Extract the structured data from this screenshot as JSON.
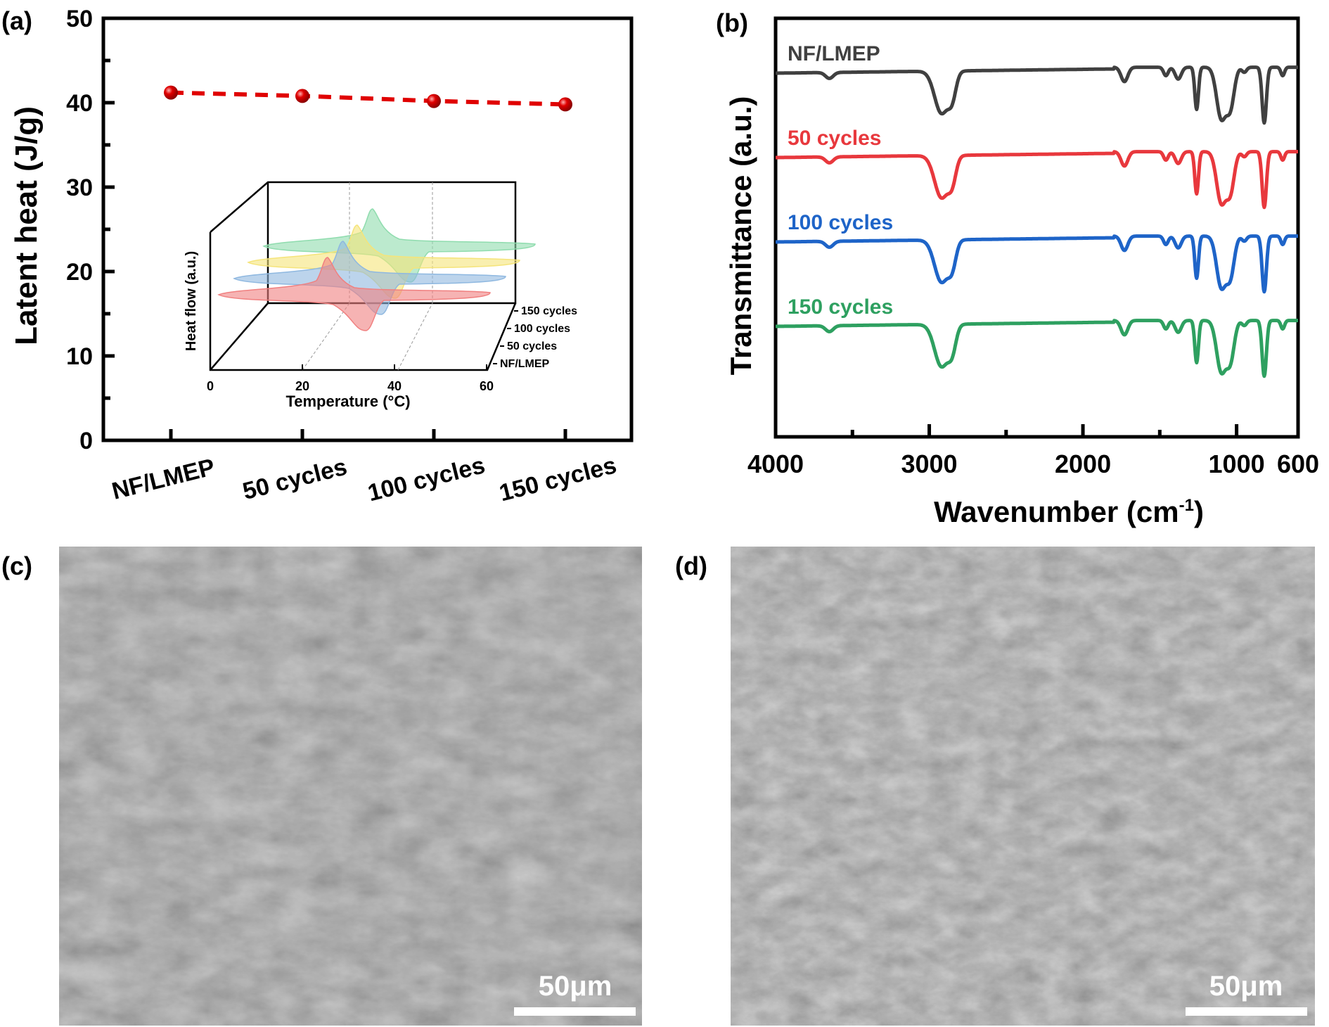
{
  "chart_data": [
    {
      "panel": "(a)",
      "type": "line",
      "categories": [
        "NF/LMEP",
        "50 cycles",
        "100 cycles",
        "150 cycles"
      ],
      "values": [
        41.2,
        40.8,
        40.2,
        39.8
      ],
      "ylabel": "Latent heat (J/g)",
      "xlabel": "",
      "ylim": [
        0,
        50
      ],
      "yticks": [
        "0",
        "10",
        "20",
        "30",
        "40",
        "50"
      ],
      "color": "#e00000",
      "line_style": "dashed",
      "inset": {
        "type": "area-3d",
        "xlabel": "Temperature (°C)",
        "ylabel": "Heat flow (a.u.)",
        "xticks": [
          "0",
          "20",
          "40",
          "60"
        ],
        "series": [
          {
            "name": "NF/LMEP",
            "color": "#f08080"
          },
          {
            "name": "50 cycles",
            "color": "#8fb8e0"
          },
          {
            "name": "100 cycles",
            "color": "#f5e47a"
          },
          {
            "name": "150 cycles",
            "color": "#8fdcae"
          }
        ]
      }
    },
    {
      "panel": "(b)",
      "type": "line",
      "xlabel": "Wavenumber (cm",
      "xlabel_sup": "-1",
      "xlabel_end": ")",
      "ylabel": "Transmittance (a.u.)",
      "xlim": [
        4000,
        600
      ],
      "xticks": [
        "4000",
        "3000",
        "2000",
        "1000",
        "600"
      ],
      "ylim": [
        -1.37,
        3.6
      ],
      "series": [
        {
          "name": "NF/LMEP",
          "color": "#404040",
          "offset": 3.0
        },
        {
          "name": "50 cycles",
          "color": "#e8383d",
          "offset": 2.0
        },
        {
          "name": "100 cycles",
          "color": "#1e64c8",
          "offset": 1.0
        },
        {
          "name": "150 cycles",
          "color": "#2ea060",
          "offset": 0.0
        }
      ],
      "absorption_peaks": [
        {
          "wavenumber": 3650,
          "depth": 0.07,
          "width": 25
        },
        {
          "wavenumber": 2920,
          "depth": 0.5,
          "width": 45
        },
        {
          "wavenumber": 2850,
          "depth": 0.25,
          "width": 25
        },
        {
          "wavenumber": 1730,
          "depth": 0.17,
          "width": 22
        },
        {
          "wavenumber": 1460,
          "depth": 0.1,
          "width": 15
        },
        {
          "wavenumber": 1380,
          "depth": 0.14,
          "width": 20
        },
        {
          "wavenumber": 1260,
          "depth": 0.5,
          "width": 12
        },
        {
          "wavenumber": 1100,
          "depth": 0.6,
          "width": 30
        },
        {
          "wavenumber": 1040,
          "depth": 0.45,
          "width": 25
        },
        {
          "wavenumber": 950,
          "depth": 0.06,
          "width": 15
        },
        {
          "wavenumber": 820,
          "depth": 0.66,
          "width": 14
        },
        {
          "wavenumber": 700,
          "depth": 0.1,
          "width": 12
        }
      ]
    }
  ],
  "panels": {
    "a_label": "(a)",
    "b_label": "(b)",
    "c_label": "(c)",
    "d_label": "(d)",
    "c_scalebar": "50μm",
    "d_scalebar": "50μm"
  }
}
